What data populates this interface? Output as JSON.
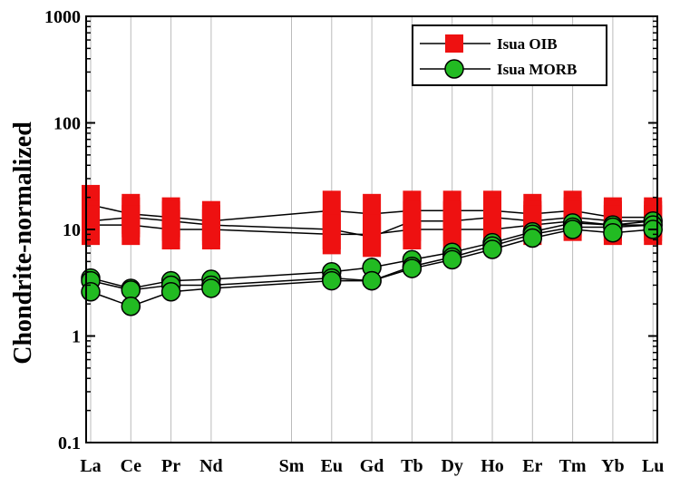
{
  "chart_data": {
    "type": "line",
    "y_scale": "log",
    "ylabel": "Chondrite-normalized",
    "xlabel": "",
    "title": "",
    "ylim": [
      0.1,
      1000
    ],
    "yticks": [
      {
        "value": 0.1,
        "label": "0.1"
      },
      {
        "value": 1,
        "label": "1"
      },
      {
        "value": 10,
        "label": "10"
      },
      {
        "value": 100,
        "label": "100"
      },
      {
        "value": 1000,
        "label": "1000"
      }
    ],
    "categories": [
      {
        "label": "La",
        "pos": 0
      },
      {
        "label": "Ce",
        "pos": 1
      },
      {
        "label": "Pr",
        "pos": 2
      },
      {
        "label": "Nd",
        "pos": 3
      },
      {
        "label": "Sm",
        "pos": 5
      },
      {
        "label": "Eu",
        "pos": 6
      },
      {
        "label": "Gd",
        "pos": 7
      },
      {
        "label": "Tb",
        "pos": 8
      },
      {
        "label": "Dy",
        "pos": 9
      },
      {
        "label": "Ho",
        "pos": 10
      },
      {
        "label": "Er",
        "pos": 11
      },
      {
        "label": "Tm",
        "pos": 12
      },
      {
        "label": "Yb",
        "pos": 13
      },
      {
        "label": "Lu",
        "pos": 14
      }
    ],
    "grid": "vertical lines at each element",
    "legend_position": "top-right",
    "series": [
      {
        "name": "Isua OIB",
        "marker": "square",
        "color": "#ee1111",
        "samples": [
          [
            17,
            14,
            13,
            12,
            null,
            15,
            14,
            15,
            15,
            15,
            14,
            15,
            13,
            13
          ],
          [
            12,
            13,
            12,
            11,
            null,
            10,
            8.5,
            12,
            12,
            13,
            12,
            13,
            12,
            12
          ],
          [
            11,
            11,
            10,
            10,
            null,
            9,
            9,
            10,
            10,
            10,
            11,
            12,
            11,
            11
          ]
        ]
      },
      {
        "name": "Isua MORB",
        "marker": "circle",
        "color": "#22bb22",
        "samples": [
          [
            3.5,
            2.8,
            3.3,
            3.4,
            null,
            4.0,
            4.4,
            5.2,
            6.1,
            7.5,
            9.5,
            11.5,
            11,
            12
          ],
          [
            3.3,
            2.7,
            3.0,
            3.0,
            null,
            3.5,
            3.3,
            4.5,
            5.5,
            7.0,
            9.0,
            10.5,
            10.5,
            11
          ],
          [
            2.6,
            1.9,
            2.6,
            2.8,
            null,
            3.3,
            3.3,
            4.3,
            5.2,
            6.5,
            8.3,
            10,
            9.3,
            10
          ]
        ]
      }
    ]
  },
  "legend": {
    "items": [
      {
        "label": "Isua OIB"
      },
      {
        "label": "Isua MORB"
      }
    ]
  },
  "colors": {
    "oib": "#ee1111",
    "morb": "#22bb22",
    "axis": "#000000",
    "grid": "#bbbbbb"
  }
}
